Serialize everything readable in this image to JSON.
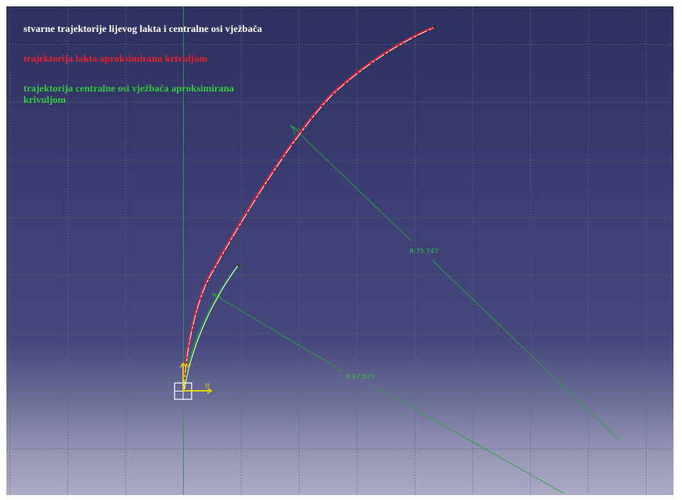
{
  "legend": {
    "white_text": "stvarne trajektorije lijevog lakta i centralne osi vježbača",
    "red_text": "trajektorija lakta aproksimirana krivuljom",
    "green_text": "trajektorija centralne osi vježbača aproksimirana krivuljom"
  },
  "dimensions": {
    "elbow_radius": "R 75,747",
    "axis_radius": "R 67,970"
  },
  "axis": {
    "h_label": "H",
    "v_label": "V"
  },
  "colors": {
    "background_top": "#2e305e",
    "background_bottom": "#aeaec8",
    "grid": "#5a6a78",
    "white_curve": "#ffffff",
    "red_curve": "#e0202c",
    "green_curve": "#2fa83a",
    "dimension_line": "#2aa53a",
    "axis_yellow": "#e8d800",
    "white_text": "#ffffff",
    "red_text": "#e8202c",
    "green_text": "#35c83c"
  }
}
